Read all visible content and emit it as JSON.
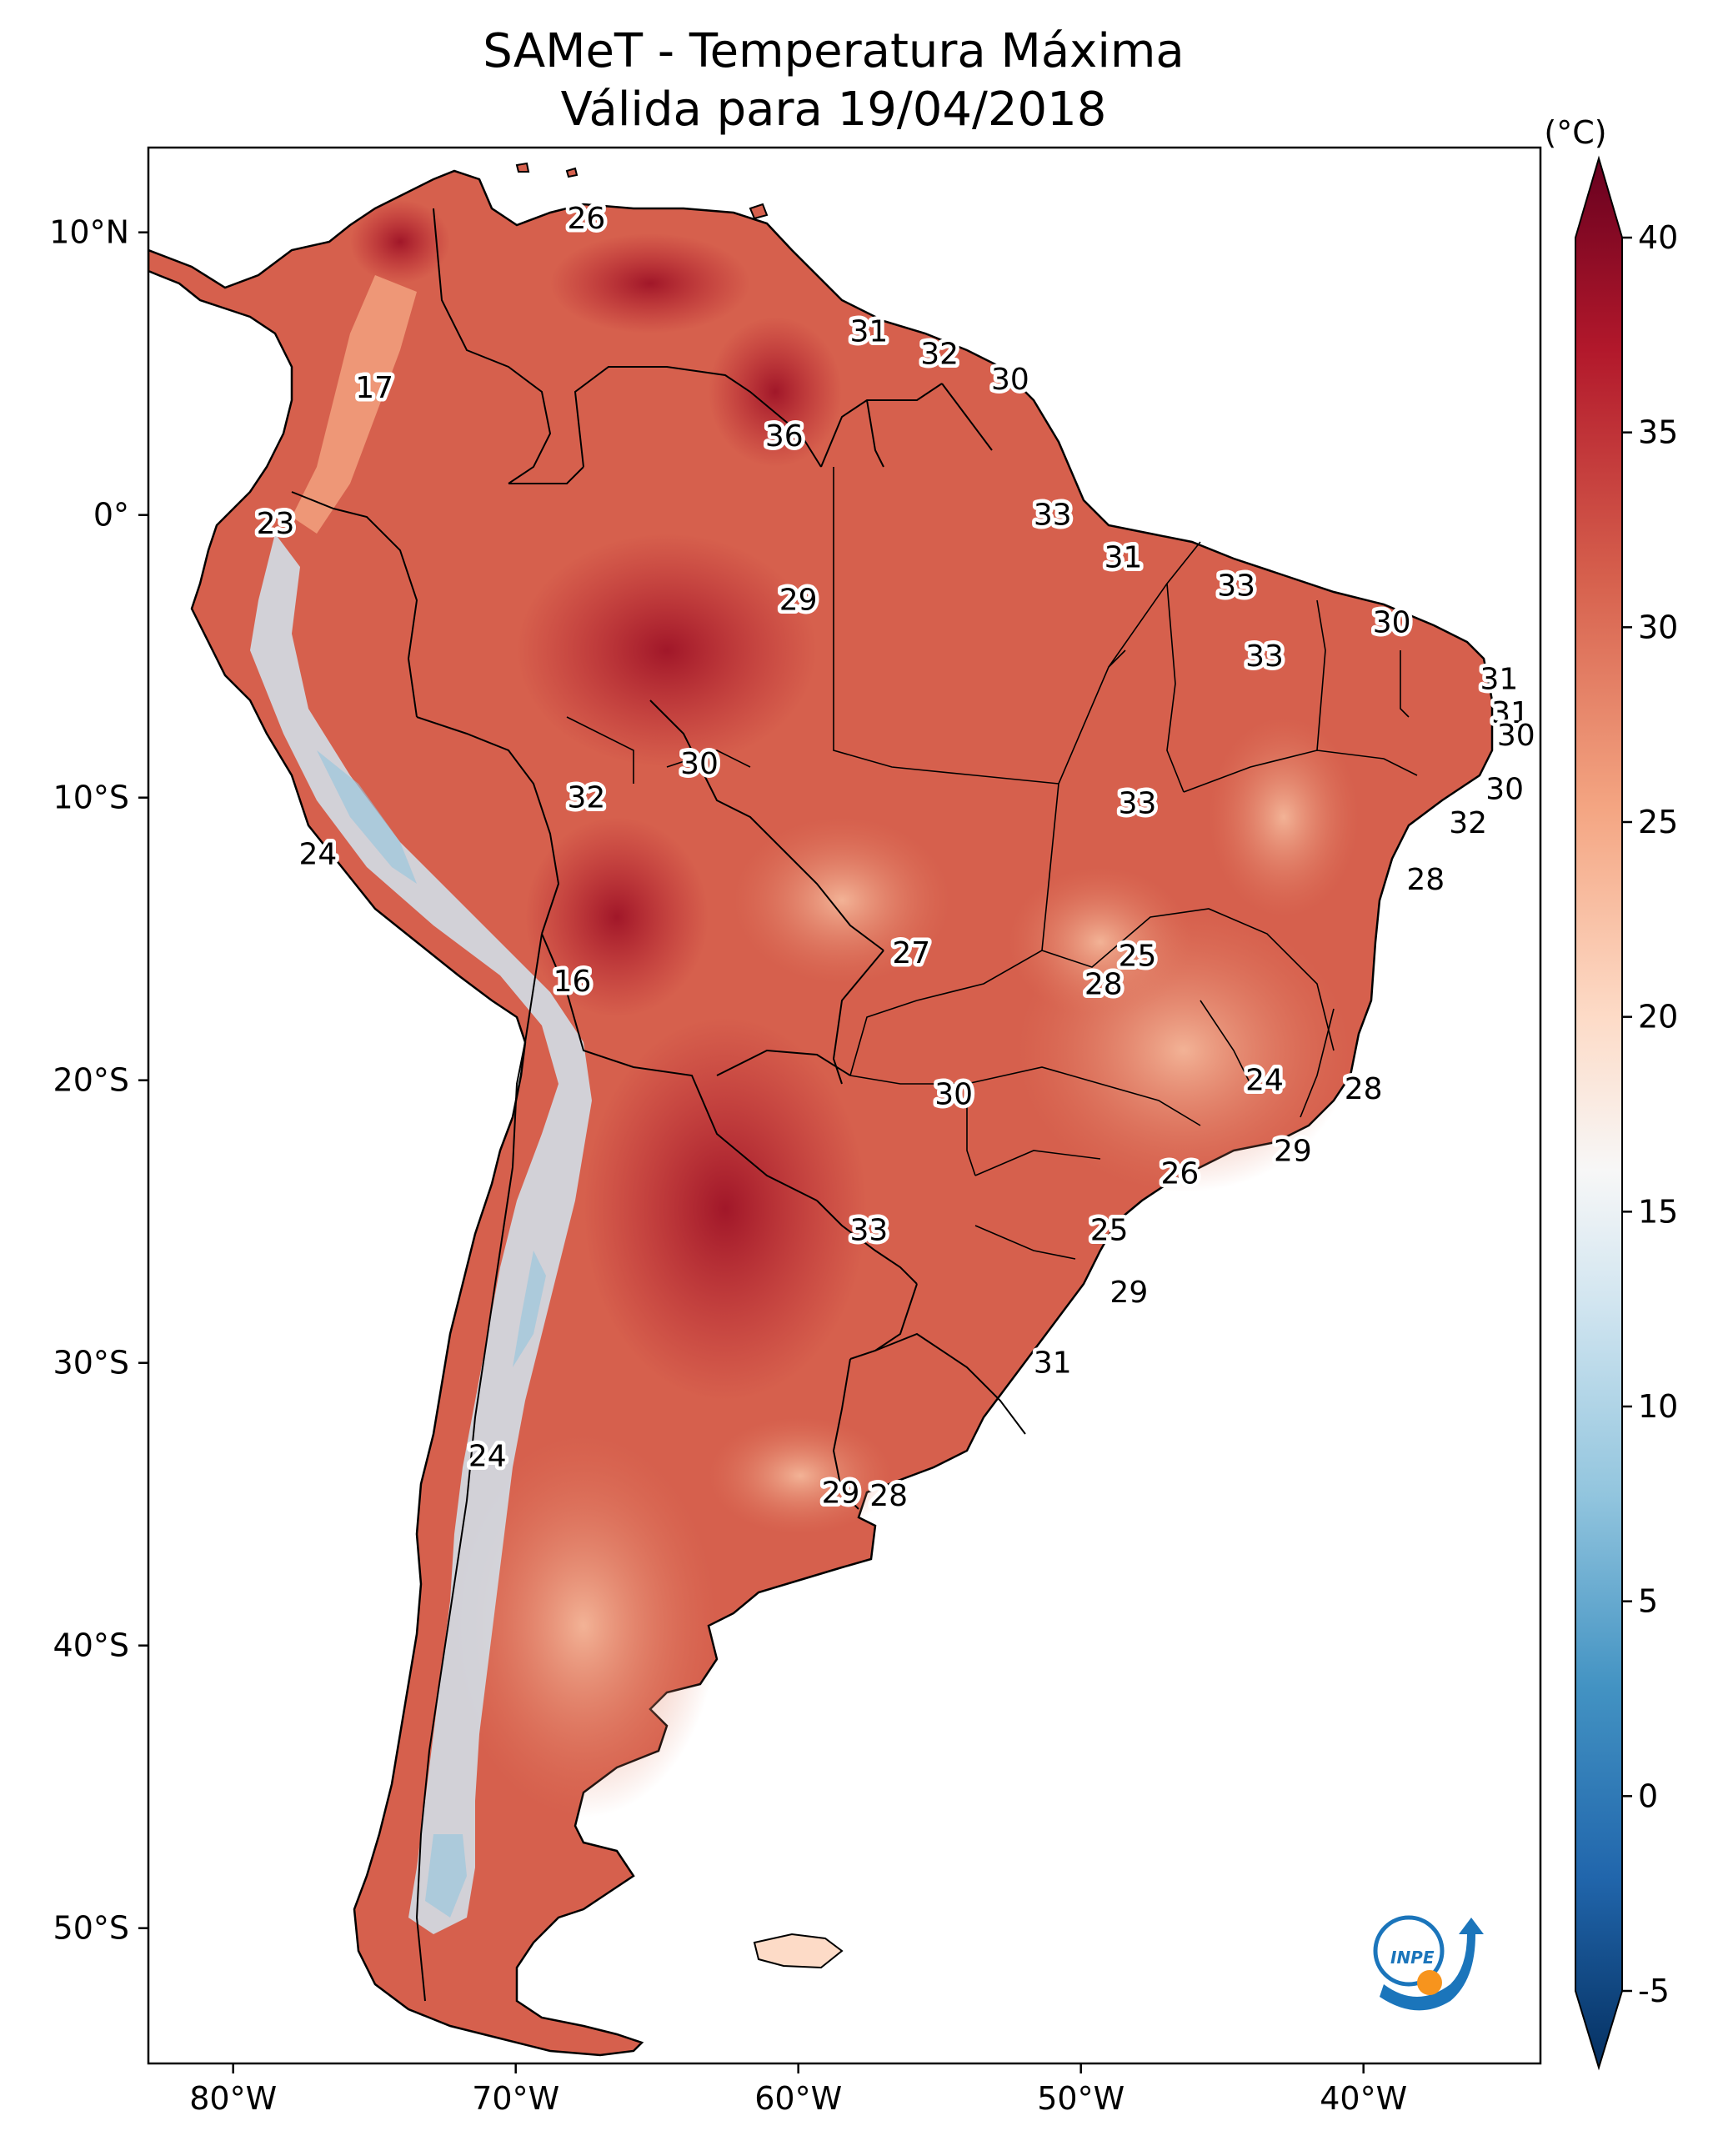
{
  "title": {
    "line1": "SAMeT - Temperatura Máxima",
    "line2": "Válida para 19/04/2018"
  },
  "axes": {
    "lon_ticks": [
      "80°W",
      "70°W",
      "60°W",
      "50°W",
      "40°W"
    ],
    "lat_ticks": [
      "10°N",
      "0°",
      "10°S",
      "20°S",
      "30°S",
      "40°S",
      "50°S"
    ]
  },
  "colorbar": {
    "unit": "(°C)",
    "min": -5,
    "max": 40,
    "ticks": [
      "40",
      "35",
      "30",
      "25",
      "20",
      "15",
      "10",
      "5",
      "0",
      "-5"
    ],
    "colors": [
      "#053061",
      "#2166ac",
      "#4393c3",
      "#92c5de",
      "#d1e5f0",
      "#f7f7f7",
      "#fddbc7",
      "#f4a582",
      "#d6604d",
      "#b2182b",
      "#67001f"
    ]
  },
  "map_colors": {
    "hot": "#b2182b",
    "warm": "#d6604d",
    "mild": "#f4a582",
    "cool": "#f7f7f7",
    "cold": "#92c5de"
  },
  "station_labels": [
    {
      "text": "26",
      "lon": -67.5,
      "lat": 10.5
    },
    {
      "text": "17",
      "lon": -75.0,
      "lat": 4.5
    },
    {
      "text": "31",
      "lon": -57.5,
      "lat": 6.5
    },
    {
      "text": "32",
      "lon": -55.0,
      "lat": 5.7
    },
    {
      "text": "30",
      "lon": -52.5,
      "lat": 4.8
    },
    {
      "text": "36",
      "lon": -60.5,
      "lat": 2.8
    },
    {
      "text": "23",
      "lon": -78.5,
      "lat": -0.3
    },
    {
      "text": "33",
      "lon": -51.0,
      "lat": 0.0
    },
    {
      "text": "31",
      "lon": -48.5,
      "lat": -1.5
    },
    {
      "text": "29",
      "lon": -60.0,
      "lat": -3.0
    },
    {
      "text": "33",
      "lon": -44.5,
      "lat": -2.5
    },
    {
      "text": "30",
      "lon": -39.0,
      "lat": -3.8
    },
    {
      "text": "33",
      "lon": -43.5,
      "lat": -5.0
    },
    {
      "text": "31",
      "lon": -35.2,
      "lat": -5.8
    },
    {
      "text": "31",
      "lon": -34.8,
      "lat": -7.0
    },
    {
      "text": "30",
      "lon": -34.6,
      "lat": -7.8
    },
    {
      "text": "30",
      "lon": -63.5,
      "lat": -8.8
    },
    {
      "text": "32",
      "lon": -67.5,
      "lat": -10.0
    },
    {
      "text": "33",
      "lon": -48.0,
      "lat": -10.2
    },
    {
      "text": "30",
      "lon": -35.0,
      "lat": -9.7
    },
    {
      "text": "32",
      "lon": -36.3,
      "lat": -10.9
    },
    {
      "text": "24",
      "lon": -77.0,
      "lat": -12.0
    },
    {
      "text": "28",
      "lon": -37.8,
      "lat": -12.9
    },
    {
      "text": "27",
      "lon": -56.0,
      "lat": -15.5
    },
    {
      "text": "25",
      "lon": -48.0,
      "lat": -15.6
    },
    {
      "text": "28",
      "lon": -49.2,
      "lat": -16.6
    },
    {
      "text": "16",
      "lon": -68.0,
      "lat": -16.5
    },
    {
      "text": "24",
      "lon": -43.5,
      "lat": -20.0
    },
    {
      "text": "28",
      "lon": -40.0,
      "lat": -20.3
    },
    {
      "text": "30",
      "lon": -54.5,
      "lat": -20.5
    },
    {
      "text": "29",
      "lon": -42.5,
      "lat": -22.5
    },
    {
      "text": "26",
      "lon": -46.5,
      "lat": -23.3
    },
    {
      "text": "33",
      "lon": -57.5,
      "lat": -25.3
    },
    {
      "text": "25",
      "lon": -49.0,
      "lat": -25.3
    },
    {
      "text": "29",
      "lon": -48.3,
      "lat": -27.5
    },
    {
      "text": "31",
      "lon": -51.0,
      "lat": -30.0
    },
    {
      "text": "24",
      "lon": -71.0,
      "lat": -33.3
    },
    {
      "text": "29",
      "lon": -58.5,
      "lat": -34.6
    },
    {
      "text": "28",
      "lon": -56.8,
      "lat": -34.7
    }
  ],
  "logo": {
    "text": "INPE"
  }
}
